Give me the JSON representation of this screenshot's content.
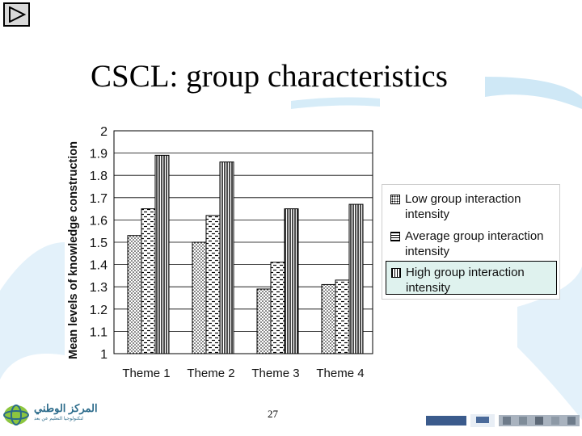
{
  "slide": {
    "title": "CSCL: group characteristics",
    "page_number": "27",
    "logo_text": "المركز الوطني",
    "logo_subtext": "لتكنولوجيا التعليم عن بعد",
    "nav_icon": "play-triangle-icon"
  },
  "colors": {
    "light_blue_swoosh": "#cfe8f6",
    "legend_highlight": "#dff2ee",
    "bar_outline": "#000000"
  },
  "chart_data": {
    "type": "bar",
    "title": "",
    "ylabel": "Mean levels of knowledge construction",
    "xlabel": "",
    "categories": [
      "Theme 1",
      "Theme 2",
      "Theme 3",
      "Theme 4"
    ],
    "ylim": [
      1,
      2
    ],
    "yticks": [
      "1",
      "1.1",
      "1.2",
      "1.3",
      "1.4",
      "1.5",
      "1.6",
      "1.7",
      "1.8",
      "1.9",
      "2"
    ],
    "grid": true,
    "legend_position": "right",
    "series": [
      {
        "name": "Low group interaction intensity",
        "values": [
          1.53,
          1.5,
          1.29,
          1.31
        ],
        "pattern": "dots"
      },
      {
        "name": "Average group interaction intensity",
        "values": [
          1.65,
          1.62,
          1.41,
          1.33
        ],
        "pattern": "dashes"
      },
      {
        "name": "High group interaction intensity",
        "values": [
          1.89,
          1.86,
          1.65,
          1.67
        ],
        "pattern": "vertical-stripes"
      }
    ],
    "legend_labels": [
      {
        "line1": "Low group interaction",
        "line2": "intensity"
      },
      {
        "line1": "Average group interaction",
        "line2": "intensity"
      },
      {
        "line1": "High group interaction",
        "line2": "intensity"
      }
    ]
  }
}
